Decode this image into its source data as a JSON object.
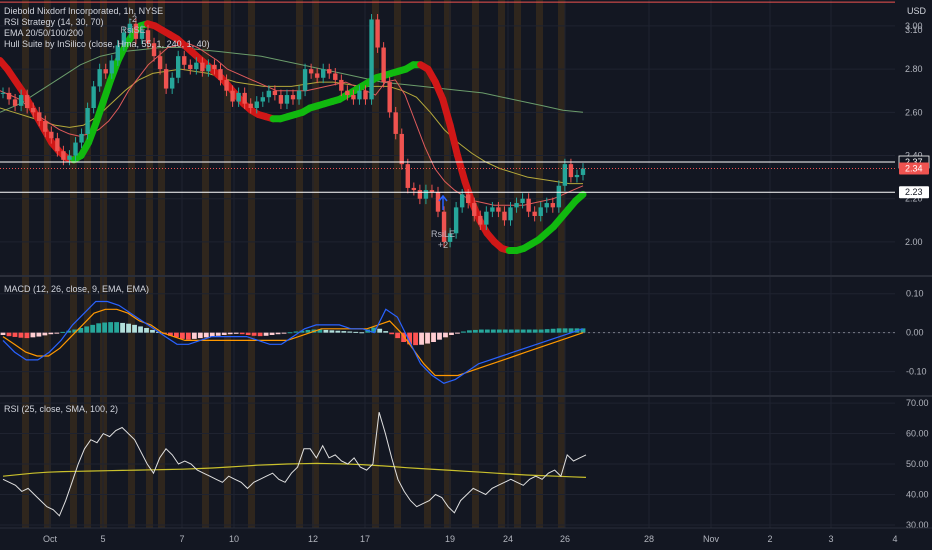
{
  "header": {
    "title": "Diebold Nixdorf Incorporated, 1h, NYSE",
    "currency": "USD",
    "legends": [
      "RSI Strategy (14, 30, 70)",
      "EMA 20/50/100/200",
      "Hull Suite by InSilico (close, Hma, 55, 1, 240, 1, 40)"
    ]
  },
  "macd_label": "MACD (12, 26, close, 9, EMA, EMA)",
  "rsi_label": "RSI (25, close, SMA, 100, 2)",
  "price_labels": {
    "a": "2.37",
    "b": "2.34",
    "c": "2.23"
  },
  "signals": {
    "short": {
      "label": "RsiSE",
      "count": "-2"
    },
    "long": {
      "label": "RsiLE",
      "count": "+2"
    }
  },
  "x_ticks": [
    "Oct",
    "5",
    "7",
    "10",
    "12",
    "17",
    "19",
    "24",
    "26",
    "28",
    "Nov",
    "2",
    "3",
    "4"
  ],
  "price_ticks": [
    "3.00",
    "2.80",
    "2.60",
    "2.40",
    "2.20",
    "2.00"
  ],
  "top_cut_tick": "3.10",
  "macd_ticks": [
    "0.10",
    "0.00",
    "-0.10"
  ],
  "rsi_ticks": [
    "70.00",
    "60.00",
    "50.00",
    "40.00",
    "30.00"
  ],
  "colors": {
    "bg": "#131722",
    "up": "#26a69a",
    "down": "#ef5350",
    "hull_up": "#11b90f",
    "hull_down": "#d01717",
    "ema_fast": "#e05b5b",
    "ema_mid": "#b5a93b",
    "ema_slow": "#6b9c6b",
    "macd": "#2962ff",
    "signal": "#ff9800",
    "rsi": "#e0e0e0",
    "rsi_ma": "#c9c02c",
    "grid": "#1f2330",
    "hilite": "rgba(255,152,0,0.12)"
  },
  "chart_data": [
    {
      "type": "line",
      "title": "Diebold Nixdorf Incorporated, 1h, NYSE",
      "ylabel": "USD",
      "ylim": [
        1.87,
        3.12
      ],
      "last_price": 2.34,
      "horizontal_levels": [
        3.11,
        2.37,
        2.34,
        2.23
      ],
      "series": [
        {
          "name": "price",
          "values": [
            2.69,
            2.66,
            2.63,
            2.68,
            2.62,
            2.6,
            2.56,
            2.51,
            2.48,
            2.42,
            2.38,
            2.4,
            2.46,
            2.5,
            2.62,
            2.72,
            2.8,
            2.78,
            2.84,
            2.91,
            2.97,
            3.01,
            2.94,
            2.98,
            2.92,
            2.86,
            2.8,
            2.71,
            2.76,
            2.86,
            2.82,
            2.8,
            2.83,
            2.79,
            2.82,
            2.8,
            2.75,
            2.7,
            2.65,
            2.69,
            2.64,
            2.62,
            2.65,
            2.67,
            2.7,
            2.68,
            2.64,
            2.68,
            2.66,
            2.7,
            2.8,
            2.78,
            2.76,
            2.8,
            2.78,
            2.75,
            2.7,
            2.68,
            2.66,
            2.7,
            2.66,
            3.03,
            2.9,
            2.74,
            2.6,
            2.5,
            2.36,
            2.25,
            2.24,
            2.2,
            2.24,
            2.23,
            2.14,
            2.0,
            2.04,
            2.16,
            2.22,
            2.18,
            2.12,
            2.08,
            2.14,
            2.16,
            2.14,
            2.1,
            2.16,
            2.18,
            2.2,
            2.14,
            2.12,
            2.16,
            2.18,
            2.16,
            2.26,
            2.36,
            2.3,
            2.31,
            2.34
          ]
        },
        {
          "name": "Hull Suite",
          "values": [
            2.84,
            2.8,
            2.75,
            2.7,
            2.64,
            2.58,
            2.52,
            2.46,
            2.42,
            2.39,
            2.38,
            2.4,
            2.46,
            2.55,
            2.65,
            2.75,
            2.84,
            2.91,
            2.96,
            3.0,
            3.01,
            3.0,
            2.98,
            2.96,
            2.94,
            2.91,
            2.88,
            2.85,
            2.82,
            2.79,
            2.76,
            2.72,
            2.68,
            2.64,
            2.61,
            2.59,
            2.58,
            2.57,
            2.57,
            2.58,
            2.59,
            2.6,
            2.62,
            2.63,
            2.64,
            2.65,
            2.66,
            2.68,
            2.7,
            2.72,
            2.74,
            2.76,
            2.77,
            2.78,
            2.79,
            2.8,
            2.82,
            2.82,
            2.8,
            2.74,
            2.66,
            2.54,
            2.4,
            2.28,
            2.18,
            2.1,
            2.04,
            2.0,
            1.97,
            1.96,
            1.96,
            1.97,
            1.99,
            2.01,
            2.04,
            2.07,
            2.11,
            2.15,
            2.19,
            2.22
          ]
        },
        {
          "name": "EMA 20",
          "values": [
            2.7,
            2.68,
            2.66,
            2.62,
            2.58,
            2.55,
            2.52,
            2.5,
            2.49,
            2.5,
            2.52,
            2.56,
            2.62,
            2.7,
            2.76,
            2.82,
            2.86,
            2.9,
            2.91,
            2.92,
            2.9,
            2.87,
            2.84,
            2.8,
            2.78,
            2.76,
            2.74,
            2.72,
            2.7,
            2.7,
            2.7,
            2.7,
            2.71,
            2.72,
            2.73,
            2.74,
            2.72,
            2.7,
            2.68,
            2.74,
            2.75,
            2.68,
            2.56,
            2.44,
            2.34,
            2.28,
            2.24,
            2.21,
            2.19,
            2.18,
            2.17,
            2.17,
            2.17,
            2.17,
            2.18,
            2.19,
            2.2,
            2.22,
            2.24,
            2.26
          ]
        },
        {
          "name": "EMA 50",
          "values": [
            2.62,
            2.6,
            2.58,
            2.56,
            2.54,
            2.53,
            2.54,
            2.58,
            2.64,
            2.7,
            2.75,
            2.78,
            2.79,
            2.8,
            2.79,
            2.78,
            2.76,
            2.74,
            2.73,
            2.72,
            2.72,
            2.72,
            2.73,
            2.74,
            2.74,
            2.73,
            2.72,
            2.72,
            2.72,
            2.7,
            2.67,
            2.6,
            2.52,
            2.46,
            2.41,
            2.37,
            2.34,
            2.32,
            2.3,
            2.29,
            2.28,
            2.27,
            2.27
          ]
        },
        {
          "name": "EMA 200",
          "values": [
            2.6,
            2.64,
            2.7,
            2.76,
            2.82,
            2.86,
            2.88,
            2.89,
            2.9,
            2.9,
            2.89,
            2.88,
            2.87,
            2.86,
            2.84,
            2.82,
            2.8,
            2.78,
            2.76,
            2.74,
            2.73,
            2.72,
            2.71,
            2.7,
            2.69,
            2.67,
            2.65,
            2.63,
            2.61,
            2.6
          ]
        }
      ]
    },
    {
      "type": "bar",
      "title": "MACD (12, 26, close, 9, EMA, EMA)",
      "ylim": [
        -0.16,
        0.13
      ],
      "series": [
        {
          "name": "histogram",
          "values": [
            -0.006,
            -0.009,
            -0.011,
            -0.013,
            -0.014,
            -0.012,
            -0.01,
            -0.007,
            -0.004,
            -0.001,
            0.002,
            0.005,
            0.008,
            0.012,
            0.016,
            0.02,
            0.024,
            0.026,
            0.027,
            0.027,
            0.025,
            0.023,
            0.02,
            0.016,
            0.012,
            0.007,
            0.002,
            -0.003,
            -0.008,
            -0.012,
            -0.016,
            -0.018,
            -0.016,
            -0.014,
            -0.012,
            -0.01,
            -0.008,
            -0.006,
            -0.004,
            -0.003,
            -0.004,
            -0.006,
            -0.008,
            -0.009,
            -0.008,
            -0.006,
            -0.004,
            -0.002,
            0.001,
            0.003,
            0.005,
            0.007,
            0.008,
            0.008,
            0.007,
            0.006,
            0.005,
            0.004,
            0.003,
            0.002,
            0.001,
            0.008,
            0.013,
            0.01,
            0.004,
            -0.004,
            -0.014,
            -0.024,
            -0.03,
            -0.032,
            -0.031,
            -0.028,
            -0.024,
            -0.018,
            -0.012,
            -0.006,
            -0.002,
            0.003,
            0.006,
            0.007,
            0.008,
            0.008,
            0.008,
            0.008,
            0.008,
            0.008,
            0.008,
            0.008,
            0.008,
            0.008,
            0.008,
            0.009,
            0.01,
            0.011,
            0.011,
            0.011,
            0.011,
            0.011
          ]
        },
        {
          "name": "MACD",
          "values": [
            -0.02,
            -0.05,
            -0.07,
            -0.07,
            -0.05,
            -0.02,
            0.02,
            0.05,
            0.08,
            0.08,
            0.07,
            0.05,
            0.03,
            0.01,
            -0.01,
            -0.03,
            -0.03,
            -0.02,
            -0.01,
            -0.01,
            -0.01,
            -0.01,
            -0.02,
            -0.03,
            -0.03,
            -0.01,
            0.01,
            0.02,
            0.02,
            0.02,
            0.01,
            0.01,
            0.0,
            0.06,
            0.04,
            -0.02,
            -0.08,
            -0.11,
            -0.13,
            -0.12,
            -0.1,
            -0.08,
            -0.07,
            -0.06,
            -0.05,
            -0.04,
            -0.03,
            -0.02,
            -0.01,
            0.0,
            0.01
          ]
        },
        {
          "name": "signal",
          "values": [
            -0.01,
            -0.03,
            -0.05,
            -0.06,
            -0.06,
            -0.04,
            -0.01,
            0.02,
            0.05,
            0.06,
            0.06,
            0.05,
            0.03,
            0.02,
            0.0,
            -0.01,
            -0.02,
            -0.02,
            -0.02,
            -0.02,
            -0.02,
            -0.02,
            -0.02,
            -0.02,
            -0.02,
            -0.02,
            -0.01,
            0.0,
            0.01,
            0.01,
            0.01,
            0.01,
            0.01,
            0.02,
            0.03,
            0.0,
            -0.04,
            -0.08,
            -0.11,
            -0.11,
            -0.11,
            -0.1,
            -0.09,
            -0.08,
            -0.07,
            -0.06,
            -0.05,
            -0.04,
            -0.03,
            -0.02,
            -0.01,
            0.0
          ]
        }
      ]
    },
    {
      "type": "line",
      "title": "RSI (25, close, SMA, 100, 2)",
      "ylim": [
        29,
        72
      ],
      "series": [
        {
          "name": "RSI",
          "values": [
            45,
            44,
            43,
            41,
            42,
            40,
            38,
            36,
            35,
            33,
            38,
            44,
            50,
            55,
            58,
            57,
            60,
            59,
            61,
            62,
            60,
            58,
            54,
            50,
            47,
            52,
            55,
            53,
            50,
            51,
            50,
            48,
            47,
            46,
            45,
            44,
            46,
            45,
            44,
            42,
            44,
            45,
            46,
            47,
            45,
            44,
            47,
            49,
            55,
            55,
            52,
            56,
            52,
            53,
            51,
            50,
            52,
            49,
            48,
            50,
            67,
            60,
            52,
            45,
            41,
            38,
            36,
            37,
            38,
            40,
            39,
            36,
            34,
            38,
            40,
            42,
            41,
            40,
            42,
            43,
            44,
            45,
            44,
            43,
            45,
            46,
            45,
            47,
            48,
            46,
            53,
            51,
            52,
            53
          ]
        },
        {
          "name": "RSI MA",
          "values": [
            46,
            46.5,
            47,
            47.3,
            47.5,
            47.6,
            47.7,
            47.8,
            47.9,
            48,
            48.1,
            48.2,
            48.3,
            48.5,
            48.7,
            49,
            49.3,
            49.6,
            49.8,
            50,
            50.1,
            50.2,
            50.1,
            50,
            49.8,
            49.5,
            49.2,
            48.8,
            48.5,
            48.2,
            47.9,
            47.6,
            47.3,
            47,
            46.7,
            46.4,
            46.2,
            46,
            45.8,
            45.6
          ]
        }
      ]
    }
  ]
}
